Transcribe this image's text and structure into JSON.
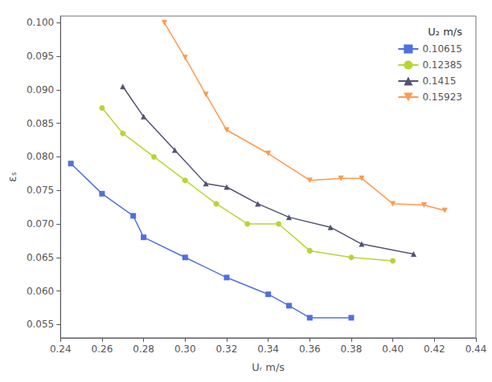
{
  "chart_data": {
    "type": "line",
    "xlabel": "Uᵣ m/s",
    "ylabel": "εₛ",
    "legend_title": "U₂ m/s",
    "series": [
      {
        "name": "0.10615",
        "marker": "square",
        "x": [
          0.245,
          0.26,
          0.275,
          0.28,
          0.3,
          0.32,
          0.34,
          0.35,
          0.36,
          0.38
        ],
        "values": [
          0.079,
          0.0745,
          0.0712,
          0.068,
          0.065,
          0.062,
          0.0595,
          0.0578,
          0.056,
          0.056
        ]
      },
      {
        "name": "0.12385",
        "marker": "circle",
        "x": [
          0.26,
          0.27,
          0.285,
          0.3,
          0.315,
          0.33,
          0.345,
          0.36,
          0.38,
          0.4
        ],
        "values": [
          0.0873,
          0.0835,
          0.08,
          0.0765,
          0.073,
          0.07,
          0.07,
          0.066,
          0.065,
          0.0645
        ]
      },
      {
        "name": "0.1415",
        "marker": "triangle",
        "x": [
          0.27,
          0.28,
          0.295,
          0.31,
          0.32,
          0.335,
          0.35,
          0.37,
          0.385,
          0.41
        ],
        "values": [
          0.0905,
          0.086,
          0.081,
          0.076,
          0.0755,
          0.073,
          0.071,
          0.0695,
          0.067,
          0.0655
        ]
      },
      {
        "name": "0.15923",
        "marker": "triangle-down",
        "x": [
          0.29,
          0.3,
          0.31,
          0.32,
          0.34,
          0.36,
          0.375,
          0.385,
          0.4,
          0.415,
          0.425
        ],
        "values": [
          0.1,
          0.0948,
          0.0893,
          0.084,
          0.0805,
          0.0765,
          0.0768,
          0.0768,
          0.073,
          0.0728,
          0.072
        ]
      }
    ],
    "xlim": [
      0.24,
      0.44
    ],
    "ylim": [
      0.053,
      0.101
    ],
    "xticks": [
      0.24,
      0.26,
      0.28,
      {
        "value": 0.3,
        "label": "0.30"
      },
      0.32,
      0.34,
      0.36,
      0.38,
      {
        "value": 0.4,
        "label": "0.40"
      },
      0.42,
      0.44
    ],
    "yticks": [
      0.055,
      {
        "value": 0.06,
        "label": "0.060"
      },
      0.065,
      {
        "value": 0.07,
        "label": "0.070"
      },
      0.075,
      {
        "value": 0.08,
        "label": "0.080"
      },
      0.085,
      {
        "value": 0.09,
        "label": "0.090"
      },
      0.095,
      {
        "value": 0.1,
        "label": "0.100"
      }
    ],
    "grid": false,
    "legend": "upper right"
  }
}
